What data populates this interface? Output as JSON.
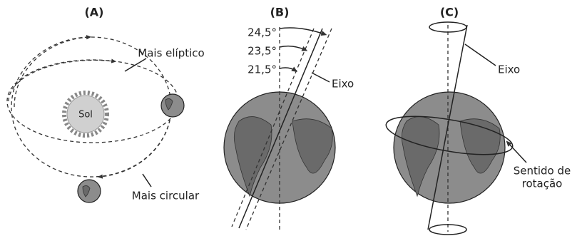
{
  "panels": [
    {
      "label": "(A)",
      "sun": "Sol",
      "annotations": [
        "Mais elíptico",
        "Mais circular"
      ]
    },
    {
      "label": "(B)",
      "angles": [
        "24,5°",
        "23,5°",
        "21,5°"
      ],
      "axis": "Eixo"
    },
    {
      "label": "(C)",
      "axis": "Eixo",
      "rotation": [
        "Sentido de",
        "rotação"
      ]
    }
  ]
}
